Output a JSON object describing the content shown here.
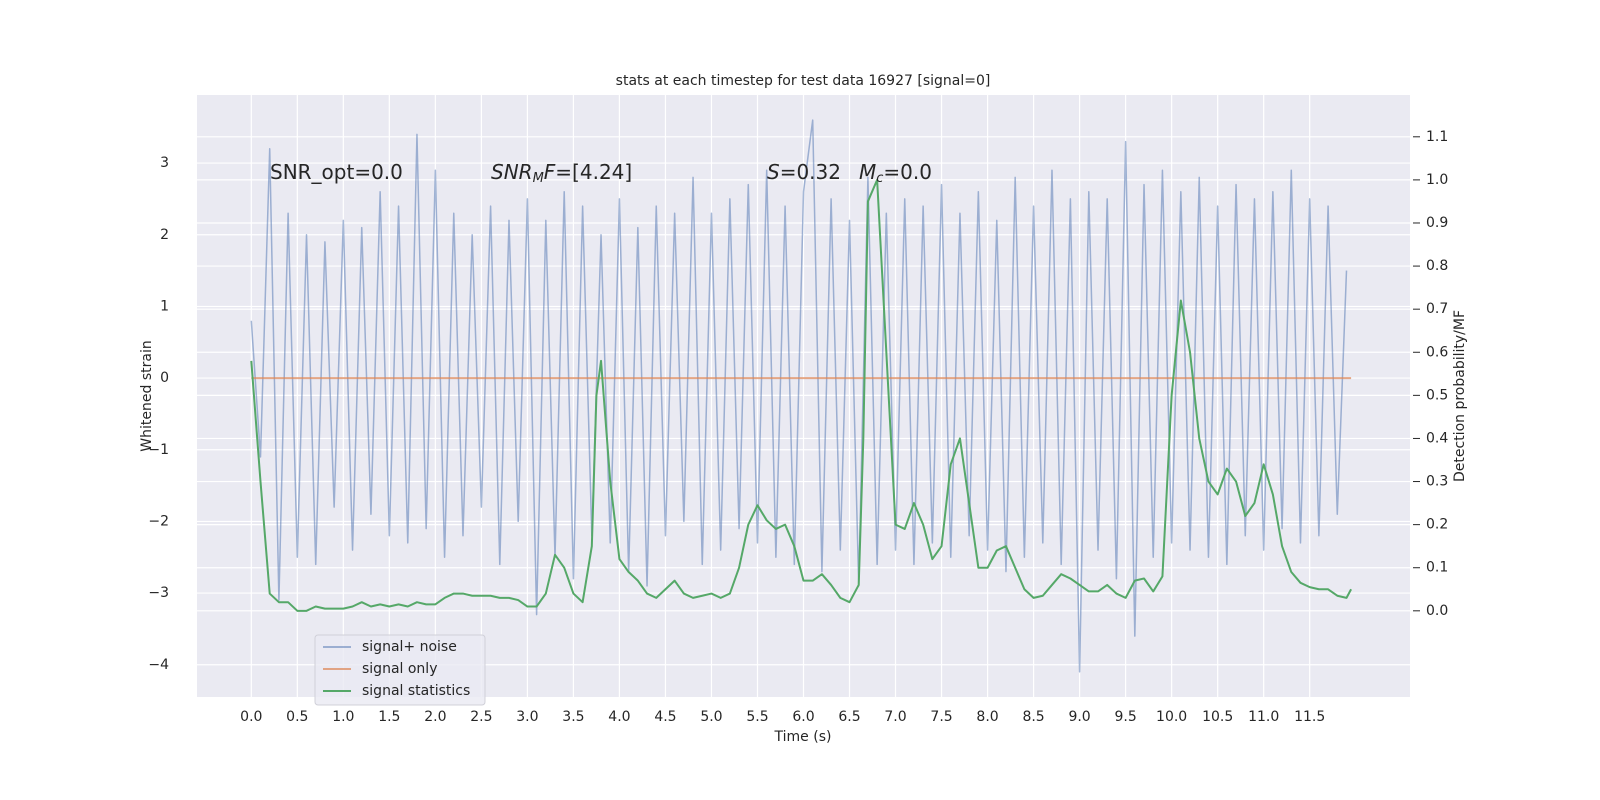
{
  "chart_data": {
    "type": "line",
    "title": "stats at each timestep for test data 16927 [signal=0]",
    "xlabel": "Time (s)",
    "ylabel": "Whitened strain",
    "y2label": "Detection probability/MF",
    "annotations": [
      [
        {
          "text": "SNR_opt=0.0",
          "style": "normal"
        }
      ],
      [
        {
          "text": "SNR",
          "style": "italic"
        },
        {
          "text": "M",
          "style": "sub"
        },
        {
          "text": "F",
          "style": "italic"
        },
        {
          "text": "=[4.24]",
          "style": "normal"
        }
      ],
      [
        {
          "text": "S",
          "style": "italic"
        },
        {
          "text": "=0.32",
          "style": "normal"
        }
      ],
      [
        {
          "text": "M",
          "style": "italic"
        },
        {
          "text": "c",
          "style": "sub"
        },
        {
          "text": "=0.0",
          "style": "normal"
        }
      ]
    ],
    "xlim": [
      -0.59,
      12.59
    ],
    "ylim": [
      -4.45,
      3.95
    ],
    "y2lim": [
      -0.2,
      1.197
    ],
    "xticks": [
      {
        "value": 0,
        "label": "0.0"
      },
      0.5,
      {
        "value": 1,
        "label": "1.0"
      },
      1.5,
      {
        "value": 2,
        "label": "2.0"
      },
      2.5,
      {
        "value": 3,
        "label": "3.0"
      },
      3.5,
      {
        "value": 4,
        "label": "4.0"
      },
      4.5,
      {
        "value": 5,
        "label": "5.0"
      },
      5.5,
      {
        "value": 6,
        "label": "6.0"
      },
      6.5,
      {
        "value": 7,
        "label": "7.0"
      },
      7.5,
      {
        "value": 8,
        "label": "8.0"
      },
      8.5,
      {
        "value": 9,
        "label": "9.0"
      },
      9.5,
      {
        "value": 10,
        "label": "10.0"
      },
      10.5,
      {
        "value": 11,
        "label": "11.0"
      },
      11.5
    ],
    "yticks": [
      {
        "value": -4,
        "label": "−4"
      },
      {
        "value": -3,
        "label": "−3"
      },
      {
        "value": -2,
        "label": "−2"
      },
      {
        "value": -1,
        "label": "−1"
      },
      0,
      1,
      2,
      3
    ],
    "y2ticks": [
      {
        "value": 0,
        "label": "0.0"
      },
      0.1,
      0.2,
      0.3,
      0.4,
      0.5,
      0.6,
      0.7,
      0.8,
      0.9,
      {
        "value": 1,
        "label": "1.0"
      },
      1.1
    ],
    "grid": true,
    "legend": "lower left",
    "series": [
      {
        "name": "signal+ noise",
        "color": "#4c72b0",
        "alpha": 0.5,
        "x": [
          0,
          0.1,
          0.2,
          0.3,
          0.4,
          0.5,
          0.6,
          0.7,
          0.8,
          0.9,
          1,
          1.1,
          1.2,
          1.3,
          1.4,
          1.5,
          1.6,
          1.7,
          1.8,
          1.9,
          2,
          2.1,
          2.2,
          2.3,
          2.4,
          2.5,
          2.6,
          2.7,
          2.8,
          2.9,
          3,
          3.1,
          3.2,
          3.3,
          3.4,
          3.5,
          3.6,
          3.7,
          3.8,
          3.9,
          4,
          4.1,
          4.2,
          4.3,
          4.4,
          4.5,
          4.6,
          4.7,
          4.8,
          4.9,
          5,
          5.1,
          5.2,
          5.3,
          5.4,
          5.5,
          5.6,
          5.7,
          5.8,
          5.9,
          6,
          6.1,
          6.2,
          6.3,
          6.4,
          6.5,
          6.6,
          6.7,
          6.8,
          6.9,
          7,
          7.1,
          7.2,
          7.3,
          7.4,
          7.5,
          7.6,
          7.7,
          7.8,
          7.9,
          8,
          8.1,
          8.2,
          8.3,
          8.4,
          8.5,
          8.6,
          8.7,
          8.8,
          8.9,
          9,
          9.1,
          9.2,
          9.3,
          9.4,
          9.5,
          9.6,
          9.7,
          9.8,
          9.9,
          10,
          10.1,
          10.2,
          10.3,
          10.4,
          10.5,
          10.6,
          10.7,
          10.8,
          10.9,
          11,
          11.1,
          11.2,
          11.3,
          11.4,
          11.5,
          11.6,
          11.7,
          11.8,
          11.9
        ],
        "values": [
          0.8,
          -1.1,
          3.2,
          -3.1,
          2.3,
          -2.5,
          2.0,
          -2.6,
          1.9,
          -1.8,
          2.2,
          -2.4,
          2.1,
          -1.9,
          2.6,
          -2.2,
          2.4,
          -2.3,
          3.4,
          -2.1,
          2.9,
          -2.5,
          2.3,
          -2.2,
          2.0,
          -1.8,
          2.4,
          -2.6,
          2.2,
          -2.0,
          2.5,
          -3.3,
          2.2,
          -2.5,
          2.6,
          -2.8,
          2.4,
          -2.2,
          2.0,
          -2.3,
          2.5,
          -2.7,
          2.1,
          -2.9,
          2.4,
          -2.2,
          2.3,
          -2.0,
          2.8,
          -2.6,
          2.3,
          -2.4,
          2.5,
          -2.1,
          2.7,
          -2.3,
          2.9,
          -2.5,
          2.4,
          -2.6,
          2.6,
          3.6,
          -2.7,
          2.5,
          -2.4,
          2.2,
          -2.9,
          2.8,
          -2.6,
          2.3,
          -2.4,
          2.5,
          -2.6,
          2.4,
          -2.3,
          2.7,
          -2.5,
          2.3,
          -2.2,
          2.6,
          -2.4,
          2.2,
          -2.7,
          2.8,
          -2.5,
          2.4,
          -2.3,
          2.9,
          -2.6,
          2.5,
          -4.1,
          2.6,
          -2.4,
          2.5,
          -2.8,
          3.3,
          -3.6,
          2.7,
          -2.5,
          2.9,
          -2.3,
          2.6,
          -2.4,
          2.8,
          -2.5,
          2.4,
          -2.6,
          2.7,
          -2.2,
          2.5,
          -2.4,
          2.6,
          -2.1,
          2.9,
          -2.3,
          2.5,
          -2.2,
          2.4,
          -1.9,
          1.5
        ]
      },
      {
        "name": "signal only",
        "color": "#dd8452",
        "alpha": 0.7,
        "x": [
          0,
          11.95
        ],
        "values": [
          0,
          0
        ]
      },
      {
        "name": "signal statistics",
        "color": "#55a868",
        "alpha": 1,
        "axis": "y2",
        "x": [
          0,
          0.1,
          0.2,
          0.3,
          0.4,
          0.5,
          0.6,
          0.7,
          0.8,
          0.9,
          1,
          1.1,
          1.2,
          1.3,
          1.4,
          1.5,
          1.6,
          1.7,
          1.8,
          1.9,
          2,
          2.1,
          2.2,
          2.3,
          2.4,
          2.5,
          2.6,
          2.7,
          2.8,
          2.9,
          3,
          3.1,
          3.2,
          3.3,
          3.4,
          3.5,
          3.6,
          3.7,
          3.75,
          3.8,
          3.9,
          4,
          4.1,
          4.2,
          4.3,
          4.4,
          4.5,
          4.6,
          4.7,
          4.8,
          4.9,
          5,
          5.1,
          5.2,
          5.3,
          5.4,
          5.5,
          5.6,
          5.7,
          5.8,
          5.9,
          6,
          6.1,
          6.2,
          6.3,
          6.4,
          6.5,
          6.6,
          6.65,
          6.7,
          6.8,
          6.9,
          7,
          7.1,
          7.2,
          7.3,
          7.4,
          7.5,
          7.6,
          7.7,
          7.8,
          7.9,
          8,
          8.1,
          8.2,
          8.3,
          8.4,
          8.5,
          8.6,
          8.7,
          8.8,
          8.9,
          9,
          9.1,
          9.2,
          9.3,
          9.4,
          9.5,
          9.6,
          9.7,
          9.8,
          9.9,
          10,
          10.1,
          10.2,
          10.3,
          10.4,
          10.5,
          10.6,
          10.7,
          10.8,
          10.9,
          11,
          11.1,
          11.2,
          11.3,
          11.4,
          11.5,
          11.6,
          11.7,
          11.8,
          11.9,
          11.95
        ],
        "values": [
          0.58,
          0.3,
          0.04,
          0.02,
          0.02,
          0.0,
          0.0,
          0.01,
          0.005,
          0.005,
          0.005,
          0.01,
          0.02,
          0.01,
          0.015,
          0.01,
          0.015,
          0.01,
          0.02,
          0.015,
          0.015,
          0.03,
          0.04,
          0.04,
          0.035,
          0.035,
          0.035,
          0.03,
          0.03,
          0.025,
          0.01,
          0.01,
          0.04,
          0.13,
          0.1,
          0.04,
          0.02,
          0.15,
          0.5,
          0.58,
          0.3,
          0.12,
          0.09,
          0.07,
          0.04,
          0.03,
          0.05,
          0.07,
          0.04,
          0.03,
          0.035,
          0.04,
          0.03,
          0.04,
          0.1,
          0.2,
          0.245,
          0.21,
          0.19,
          0.2,
          0.15,
          0.07,
          0.07,
          0.085,
          0.06,
          0.03,
          0.02,
          0.06,
          0.4,
          0.95,
          1.0,
          0.6,
          0.2,
          0.19,
          0.25,
          0.2,
          0.12,
          0.15,
          0.34,
          0.4,
          0.25,
          0.1,
          0.1,
          0.14,
          0.15,
          0.1,
          0.05,
          0.03,
          0.035,
          0.06,
          0.085,
          0.075,
          0.06,
          0.045,
          0.045,
          0.06,
          0.04,
          0.03,
          0.07,
          0.075,
          0.045,
          0.08,
          0.5,
          0.72,
          0.6,
          0.4,
          0.3,
          0.27,
          0.33,
          0.3,
          0.22,
          0.25,
          0.34,
          0.27,
          0.15,
          0.09,
          0.065,
          0.055,
          0.05,
          0.05,
          0.035,
          0.03,
          0.05
        ]
      }
    ]
  }
}
